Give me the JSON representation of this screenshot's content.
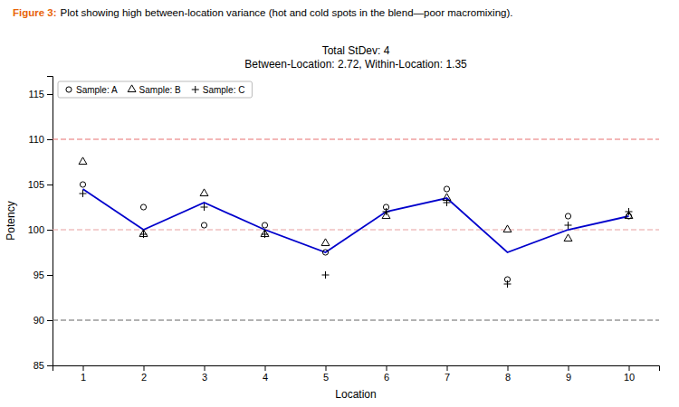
{
  "chart_data": {
    "type": "line",
    "title": "Total StDev: 4",
    "subtitle": "Between-Location: 2.72, Within-Location: 1.35",
    "annotations": [
      {
        "text": "Figure 3:",
        "color": "#E8640A"
      },
      {
        "text": " Plot showing high between-location variance (hot and cold spots in the blend—poor macromixing).",
        "color": "#000000"
      }
    ],
    "x_label": "Location",
    "y_label": "Potency",
    "x": [
      1,
      2,
      3,
      4,
      5,
      6,
      7,
      8,
      9,
      10
    ],
    "xlim": [
      0.5,
      10.5
    ],
    "xticks": [
      1,
      2,
      3,
      4,
      5,
      6,
      7,
      8,
      9,
      10
    ],
    "ylim": [
      85,
      117
    ],
    "yticks": [
      85,
      90,
      95,
      100,
      105,
      110,
      115
    ],
    "reference_lines": [
      {
        "value": 110,
        "color": "#E87070"
      },
      {
        "value": 100,
        "color": "#E8A0A0"
      },
      {
        "value": 90,
        "color": "#666666"
      }
    ],
    "series": [
      {
        "type": "line",
        "color": "#0000CC",
        "values": [
          104.5,
          100.0,
          103.0,
          100.0,
          97.5,
          102.0,
          103.5,
          97.5,
          100.0,
          101.5
        ]
      },
      {
        "name": "Sample: A",
        "type": "scatter",
        "marker": "circle",
        "color": "#000000",
        "values": [
          105.0,
          102.5,
          100.5,
          100.5,
          97.5,
          102.5,
          104.5,
          94.5,
          101.5,
          101.5
        ]
      },
      {
        "name": "Sample: B",
        "type": "scatter",
        "marker": "triangle",
        "color": "#000000",
        "values": [
          107.5,
          99.5,
          104.0,
          99.5,
          98.5,
          101.5,
          103.5,
          100.0,
          99.0,
          101.5
        ]
      },
      {
        "name": "Sample: C",
        "type": "scatter",
        "marker": "plus",
        "color": "#000000",
        "values": [
          104.0,
          99.5,
          102.5,
          99.5,
          95.0,
          102.0,
          103.0,
          94.0,
          100.5,
          102.0
        ]
      }
    ],
    "legend": "upper left",
    "grid": false
  }
}
